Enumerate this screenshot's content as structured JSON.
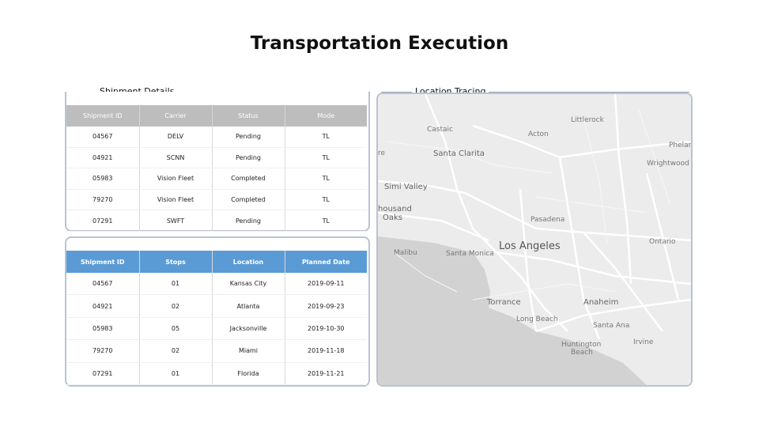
{
  "page": {
    "title": "Transportation Execution"
  },
  "sections": {
    "shipment_details": "Shipment Details",
    "location_tracing": "Location Tracing"
  },
  "table1": {
    "headers": [
      "Shipment ID",
      "Carrier",
      "Status",
      "Mode"
    ],
    "rows": [
      [
        "04567",
        "DELV",
        "Pending",
        "TL"
      ],
      [
        "04921",
        "SCNN",
        "Pending",
        "TL"
      ],
      [
        "05983",
        "Vision Fleet",
        "Completed",
        "TL"
      ],
      [
        "79270",
        "Vision Fleet",
        "Completed",
        "TL"
      ],
      [
        "07291",
        "SWFT",
        "Pending",
        "TL"
      ]
    ]
  },
  "table2": {
    "headers": [
      "Shipment ID",
      "Stops",
      "Location",
      "Planned Date"
    ],
    "rows": [
      [
        "04567",
        "01",
        "Kansas City",
        "2019-09-11"
      ],
      [
        "04921",
        "02",
        "Atlanta",
        "2019-09-23"
      ],
      [
        "05983",
        "05",
        "Jacksonville",
        "2019-10-30"
      ],
      [
        "79270",
        "02",
        "Miami",
        "2019-11-18"
      ],
      [
        "07291",
        "01",
        "Florida",
        "2019-11-21"
      ]
    ]
  },
  "map": {
    "labels": {
      "littlerock": "Littlerock",
      "castaic": "Castaic",
      "acton": "Acton",
      "phelan": "Phelan",
      "santa_clarita": "Santa Clarita",
      "wrightwood": "Wrightwood",
      "simi_valley": "Simi Valley",
      "thousand_oaks_1": "housand",
      "thousand_oaks_2": "Oaks",
      "pasadena": "Pasadena",
      "ontario": "Ontario",
      "malibu": "Malibu",
      "santa_monica": "Santa Monica",
      "los_angeles": "Los Angeles",
      "torrance": "Torrance",
      "anaheim": "Anaheim",
      "long_beach": "Long Beach",
      "santa_ana": "Santa Ana",
      "irvine": "Irvine",
      "huntington_1": "Huntington",
      "huntington_2": "Beach",
      "edge_re": "re"
    }
  }
}
